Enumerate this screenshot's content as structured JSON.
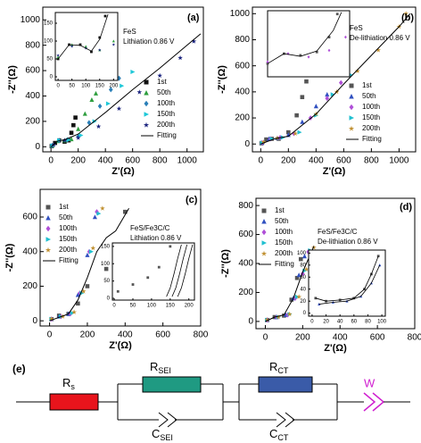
{
  "chart_data": [
    {
      "type": "scatter",
      "panel": "(a)",
      "annotation": [
        "FeS",
        "Lithiation 0.86 V"
      ],
      "xlabel": "Z'(Ω)",
      "ylabel": "-Z''(Ω)",
      "xlim": [
        -60,
        1120
      ],
      "ylim": [
        -40,
        1100
      ],
      "xticks": [
        0,
        200,
        400,
        600,
        800,
        1000
      ],
      "yticks": [
        0,
        200,
        400,
        600,
        800,
        1000
      ],
      "series": [
        {
          "name": "1st",
          "color": "#111111",
          "marker": "square",
          "x": [
            5,
            30,
            60,
            100,
            130,
            150,
            165,
            180
          ],
          "values": [
            5,
            30,
            50,
            40,
            50,
            110,
            170,
            230
          ]
        },
        {
          "name": "50th",
          "color": "#2e9e3e",
          "marker": "triangle",
          "x": [
            10,
            50,
            100,
            150,
            200,
            250,
            300,
            330
          ],
          "values": [
            10,
            45,
            50,
            60,
            140,
            260,
            370,
            420
          ]
        },
        {
          "name": "100th",
          "color": "#2a7fb8",
          "marker": "diamond",
          "x": [
            10,
            60,
            120,
            200,
            280,
            360,
            440,
            500
          ],
          "values": [
            10,
            50,
            55,
            80,
            190,
            320,
            450,
            540
          ]
        },
        {
          "name": "150th",
          "color": "#1ec8d8",
          "marker": "triangle-right",
          "x": [
            10,
            60,
            130,
            220,
            320,
            420,
            520,
            600
          ],
          "values": [
            10,
            50,
            55,
            90,
            200,
            340,
            480,
            590
          ]
        },
        {
          "name": "200th",
          "color": "#1a237e",
          "marker": "star",
          "x": [
            20,
            100,
            200,
            350,
            500,
            650,
            800,
            950,
            1050
          ],
          "values": [
            15,
            50,
            70,
            160,
            300,
            430,
            560,
            700,
            830
          ]
        },
        {
          "name": "Fitting",
          "color": "#000000",
          "line": true,
          "x": [
            0,
            50,
            100,
            200,
            400,
            600,
            800,
            1000,
            1100
          ],
          "values": [
            0,
            45,
            55,
            100,
            270,
            450,
            620,
            800,
            890
          ]
        }
      ],
      "inset": {
        "xlim": [
          -10,
          215
        ],
        "ylim": [
          -10,
          180
        ],
        "xticks": [
          0,
          50,
          100,
          150,
          200
        ],
        "yticks": [
          0,
          50,
          100,
          150
        ],
        "series": [
          {
            "color": "#111111",
            "marker": "square",
            "x": [
              0,
              40,
              80,
              120,
              150,
              170
            ],
            "values": [
              50,
              90,
              90,
              70,
              110,
              170
            ]
          },
          {
            "color": "#2e9e3e",
            "marker": "triangle",
            "x": [
              0,
              50,
              100,
              150,
              200
            ],
            "values": [
              55,
              90,
              85,
              75,
              100
            ]
          },
          {
            "color": "#1a237e",
            "marker": "star",
            "x": [
              0,
              50,
              100,
              150,
              200
            ],
            "values": [
              60,
              85,
              80,
              75,
              90
            ]
          },
          {
            "color": "#000000",
            "line": true,
            "x": [
              0,
              40,
              80,
              120,
              150,
              180
            ],
            "values": [
              50,
              90,
              88,
              72,
              105,
              175
            ]
          }
        ]
      }
    },
    {
      "type": "scatter",
      "panel": "(b)",
      "annotation": [
        "FeS",
        "De-lithiation 0.86 V"
      ],
      "xlabel": "Z'(Ω)",
      "ylabel": "-Z''(Ω)",
      "xlim": [
        -60,
        1120
      ],
      "ylim": [
        -60,
        1050
      ],
      "xticks": [
        0,
        200,
        400,
        600,
        800,
        1000
      ],
      "yticks": [
        0,
        200,
        400,
        600,
        800,
        1000
      ],
      "series": [
        {
          "name": "1st",
          "color": "#555555",
          "marker": "square",
          "x": [
            5,
            40,
            80,
            130,
            200,
            260,
            300,
            330
          ],
          "values": [
            5,
            35,
            40,
            40,
            90,
            220,
            360,
            480
          ]
        },
        {
          "name": "50th",
          "color": "#3050c0",
          "marker": "triangle",
          "x": [
            10,
            60,
            120,
            200,
            300,
            400,
            480
          ],
          "values": [
            10,
            40,
            45,
            70,
            170,
            290,
            380
          ]
        },
        {
          "name": "100th",
          "color": "#b050d8",
          "marker": "diamond",
          "x": [
            10,
            70,
            140,
            240,
            360,
            480,
            580
          ],
          "values": [
            10,
            40,
            50,
            80,
            200,
            350,
            470
          ]
        },
        {
          "name": "150th",
          "color": "#20c0d0",
          "marker": "triangle-right",
          "x": [
            10,
            80,
            160,
            280,
            400,
            520,
            650
          ],
          "values": [
            10,
            40,
            50,
            90,
            220,
            380,
            530
          ]
        },
        {
          "name": "200th",
          "color": "#c09030",
          "marker": "star",
          "x": [
            20,
            120,
            250,
            400,
            550,
            700,
            850,
            1000,
            1050
          ],
          "values": [
            15,
            45,
            80,
            230,
            400,
            560,
            720,
            900,
            1000
          ]
        },
        {
          "name": "Fitting",
          "color": "#000000",
          "line": true,
          "x": [
            0,
            100,
            200,
            400,
            600,
            800,
            1000,
            1080
          ],
          "values": [
            0,
            40,
            60,
            230,
            460,
            680,
            900,
            1000
          ]
        }
      ],
      "inset": {
        "xlim": [
          0,
          200
        ],
        "ylim": [
          0,
          200
        ],
        "series": [
          {
            "color": "#555555",
            "marker": "square",
            "x": [
              0,
              40,
              80,
              120,
              150,
              170
            ],
            "values": [
              40,
              70,
              65,
              75,
              120,
              190
            ]
          },
          {
            "color": "#b050d8",
            "marker": "diamond",
            "x": [
              0,
              50,
              100,
              150,
              190
            ],
            "values": [
              45,
              70,
              60,
              80,
              120
            ]
          },
          {
            "color": "#000000",
            "line": true,
            "x": [
              0,
              40,
              80,
              120,
              160,
              180
            ],
            "values": [
              40,
              70,
              62,
              78,
              140,
              195
            ]
          }
        ]
      }
    },
    {
      "type": "scatter",
      "panel": "(c)",
      "annotation": [
        "FeS/Fe3C/C",
        "Lithiation 0.86 V"
      ],
      "xlabel": "Z'(Ω)",
      "ylabel": "-Z''(Ω)",
      "xlim": [
        -50,
        800
      ],
      "ylim": [
        -30,
        760
      ],
      "xticks": [
        0,
        200,
        400,
        600,
        800
      ],
      "yticks": [
        0,
        200,
        400,
        600
      ],
      "series": [
        {
          "name": "1st",
          "color": "#555555",
          "marker": "square",
          "x": [
            10,
            50,
            100,
            150,
            200,
            300,
            350,
            400
          ],
          "values": [
            10,
            30,
            40,
            100,
            200,
            300,
            400,
            630
          ]
        },
        {
          "name": "50th",
          "color": "#3050c0",
          "marker": "triangle",
          "x": [
            10,
            50,
            100,
            150,
            200,
            240
          ],
          "values": [
            10,
            25,
            40,
            150,
            380,
            600
          ]
        },
        {
          "name": "100th",
          "color": "#b050d8",
          "marker": "diamond",
          "x": [
            10,
            60,
            110,
            160,
            210,
            250
          ],
          "values": [
            10,
            25,
            40,
            160,
            400,
            630
          ]
        },
        {
          "name": "150th",
          "color": "#20c0d0",
          "marker": "triangle-right",
          "x": [
            10,
            60,
            120,
            170,
            220,
            260
          ],
          "values": [
            10,
            25,
            45,
            160,
            400,
            620
          ]
        },
        {
          "name": "200th",
          "color": "#c09030",
          "marker": "star",
          "x": [
            10,
            70,
            130,
            180,
            230,
            280
          ],
          "values": [
            10,
            25,
            50,
            170,
            420,
            650
          ]
        },
        {
          "name": "Fitting",
          "color": "#000000",
          "line": true,
          "x": [
            0,
            100,
            150,
            200,
            250,
            300,
            350,
            420
          ],
          "values": [
            0,
            40,
            120,
            250,
            400,
            480,
            520,
            650
          ]
        }
      ],
      "inset": {
        "xlim": [
          -5,
          215
        ],
        "ylim": [
          -5,
          160
        ],
        "xticks": [
          0,
          50,
          100,
          150,
          200
        ],
        "yticks": [
          0,
          50,
          100,
          150
        ],
        "series": [
          {
            "color": "#555555",
            "marker": "square",
            "x": [
              10,
              50,
              90,
              120,
              150
            ],
            "values": [
              20,
              40,
              60,
              90,
              150
            ]
          },
          {
            "color": "#000000",
            "line": true,
            "x": [
              140,
              150,
              160,
              170,
              180
            ],
            "values": [
              5,
              30,
              70,
              115,
              155
            ]
          },
          {
            "color": "#000000",
            "line": true,
            "x": [
              155,
              165,
              175,
              185,
              195
            ],
            "values": [
              5,
              30,
              70,
              115,
              155
            ]
          },
          {
            "color": "#000000",
            "line": true,
            "x": [
              170,
              180,
              190,
              200,
              210
            ],
            "values": [
              5,
              30,
              70,
              115,
              155
            ]
          }
        ]
      }
    },
    {
      "type": "scatter",
      "panel": "(d)",
      "annotation": [
        "FeS/Fe3C/C",
        "De-lithiation 0.86 V"
      ],
      "xlabel": "Z'(Ω)",
      "ylabel": "-Z''(Ω)",
      "xlim": [
        -50,
        800
      ],
      "ylim": [
        -50,
        850
      ],
      "xticks": [
        0,
        200,
        400,
        600,
        800
      ],
      "yticks": [
        0,
        200,
        400,
        600,
        800
      ],
      "series": [
        {
          "name": "1st",
          "color": "#555555",
          "marker": "square",
          "x": [
            10,
            50,
            100,
            140,
            170,
            190
          ],
          "values": [
            10,
            30,
            40,
            150,
            300,
            430
          ]
        },
        {
          "name": "50th",
          "color": "#3050c0",
          "marker": "triangle",
          "x": [
            10,
            60,
            110,
            150,
            180,
            210
          ],
          "values": [
            10,
            30,
            45,
            160,
            320,
            450
          ]
        },
        {
          "name": "100th",
          "color": "#b050d8",
          "marker": "diamond",
          "x": [
            10,
            60,
            120,
            160,
            200,
            230
          ],
          "values": [
            10,
            30,
            45,
            160,
            330,
            480
          ]
        },
        {
          "name": "150th",
          "color": "#20c0d0",
          "marker": "triangle-right",
          "x": [
            10,
            70,
            130,
            170,
            210,
            240
          ],
          "values": [
            10,
            30,
            50,
            170,
            350,
            490
          ]
        },
        {
          "name": "200th",
          "color": "#c09030",
          "marker": "star",
          "x": [
            10,
            70,
            130,
            180,
            220,
            260
          ],
          "values": [
            10,
            30,
            50,
            170,
            360,
            510
          ]
        },
        {
          "name": "Fitting",
          "color": "#000000",
          "line": true,
          "x": [
            0,
            50,
            100,
            150,
            200,
            260
          ],
          "values": [
            0,
            30,
            45,
            160,
            340,
            520
          ]
        }
      ],
      "inset": {
        "xlim": [
          -5,
          105
        ],
        "ylim": [
          -5,
          105
        ],
        "xticks": [
          0,
          20,
          40,
          60,
          80,
          100
        ],
        "yticks": [
          0,
          20,
          40,
          60,
          80,
          100
        ],
        "series": [
          {
            "color": "#555555",
            "marker": "square",
            "x": [
              5,
              20,
              40,
              60,
              75,
              85,
              95
            ],
            "values": [
              25,
              20,
              22,
              25,
              40,
              65,
              95
            ]
          },
          {
            "color": "#000000",
            "line": true,
            "x": [
              5,
              20,
              40,
              60,
              75,
              85,
              95
            ],
            "values": [
              25,
              20,
              22,
              25,
              40,
              65,
              95
            ]
          },
          {
            "color": "#3050c0",
            "marker": "triangle",
            "x": [
              10,
              30,
              50,
              70,
              85,
              97
            ],
            "values": [
              15,
              18,
              20,
              28,
              50,
              80
            ]
          },
          {
            "color": "#000000",
            "line": true,
            "x": [
              10,
              30,
              50,
              70,
              85,
              97
            ],
            "values": [
              15,
              18,
              20,
              28,
              50,
              80
            ]
          }
        ]
      }
    }
  ],
  "circuit": {
    "label": "(e)",
    "elements": [
      {
        "main": "R",
        "sub": "s"
      },
      {
        "main": "R",
        "sub": "SEI"
      },
      {
        "main": "C",
        "sub": "SEI"
      },
      {
        "main": "R",
        "sub": "CT"
      },
      {
        "main": "C",
        "sub": "CT"
      },
      {
        "main": "W"
      }
    ]
  }
}
